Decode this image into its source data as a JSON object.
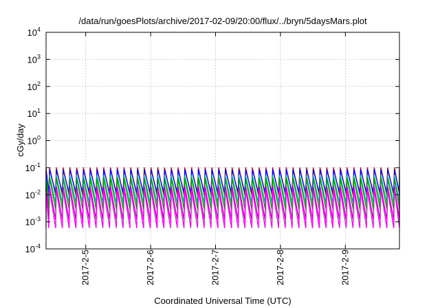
{
  "chart_data": {
    "type": "line",
    "title": "/data/run/goesPlots/archive/2017-02-09/20:00/flux/../bryn/5daysMars.plot",
    "xlabel": "Coordinated Universal Time (UTC)",
    "ylabel": "cGy/day",
    "y_scale": "log",
    "ylim": [
      0.0001,
      10000
    ],
    "y_ticks": [
      {
        "base": "10",
        "exp": "4",
        "value": 10000
      },
      {
        "base": "10",
        "exp": "3",
        "value": 1000
      },
      {
        "base": "10",
        "exp": "2",
        "value": 100
      },
      {
        "base": "10",
        "exp": "1",
        "value": 10
      },
      {
        "base": "10",
        "exp": "0",
        "value": 1
      },
      {
        "base": "10",
        "exp": "-1",
        "value": 0.1
      },
      {
        "base": "10",
        "exp": "-2",
        "value": 0.01
      },
      {
        "base": "10",
        "exp": "-3",
        "value": 0.001
      },
      {
        "base": "10",
        "exp": "-4",
        "value": 0.0001
      }
    ],
    "xlim": [
      "2017-02-04 09:20",
      "2017-02-09 20:00"
    ],
    "x_ticks": [
      "2017-2-5",
      "2017-2-6",
      "2017-2-7",
      "2017-2-8",
      "2017-2-9"
    ],
    "grid": true,
    "pulse_period_hours": 2.5,
    "series": [
      {
        "color": "#e00000",
        "peak": 0.1,
        "floor": 0.01
      },
      {
        "color": "#0000ff",
        "peak": 0.085,
        "floor": 0.012
      },
      {
        "color": "#00b0b0",
        "peak": 0.05,
        "floor": 0.005
      },
      {
        "color": "#00a000",
        "peak": 0.04,
        "floor": 0.003
      },
      {
        "color": "#a000a0",
        "peak": 0.02,
        "floor": 0.0012
      },
      {
        "color": "#ff00ff",
        "peak": 0.015,
        "floor": 0.0006
      }
    ]
  }
}
